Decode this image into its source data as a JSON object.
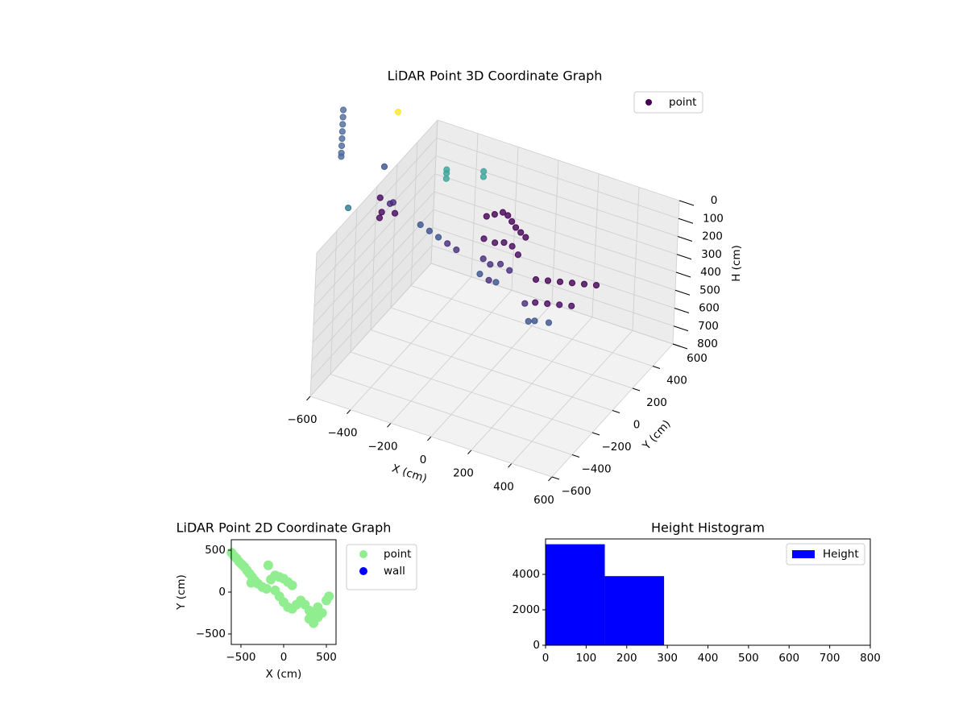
{
  "chart_data": [
    {
      "type": "scatter3d",
      "title": "LiDAR Point 3D Coordinate Graph",
      "xlabel": "X (cm)",
      "ylabel": "Y (cm)",
      "zlabel": "H (cm)",
      "xlim": [
        -600,
        600
      ],
      "ylim": [
        -600,
        600
      ],
      "hlim": [
        0,
        800
      ],
      "h_inverted": true,
      "xticks": [
        {
          "value": -600,
          "label": "−600"
        },
        {
          "value": -400,
          "label": "−400"
        },
        {
          "value": -200,
          "label": "−200"
        },
        0,
        200,
        400,
        600
      ],
      "yticks": [
        {
          "value": -600,
          "label": "−600"
        },
        {
          "value": -400,
          "label": "−400"
        },
        {
          "value": -200,
          "label": "−200"
        },
        0,
        200,
        400,
        600
      ],
      "hticks": [
        0,
        100,
        200,
        300,
        400,
        500,
        600,
        700,
        800
      ],
      "grid": true,
      "legend": "upper right",
      "series": [
        {
          "name": "point",
          "color": "#440154",
          "x": [
            -180,
            -150,
            -120,
            -90,
            -60,
            -30,
            0,
            30,
            -160,
            -110,
            -70,
            -20,
            20,
            -140,
            -100,
            -50,
            0,
            -130,
            -80,
            -40,
            150,
            200,
            250,
            300,
            350,
            400,
            180,
            230,
            280,
            330,
            200,
            260,
            120,
            160,
            -450,
            -400,
            -350,
            -300,
            -250,
            -620,
            -600,
            -580,
            -600,
            -560,
            -540,
            -740,
            -740,
            -740,
            -740,
            -740,
            -740,
            -740,
            -740,
            -636,
            -582,
            -542,
            -293,
            -293,
            -293,
            -152,
            -152
          ],
          "y": [
            260,
            280,
            300,
            290,
            270,
            250,
            240,
            230,
            200,
            210,
            220,
            200,
            180,
            160,
            150,
            150,
            140,
            110,
            100,
            90,
            100,
            120,
            140,
            160,
            180,
            200,
            40,
            60,
            80,
            100,
            0,
            20,
            60,
            20,
            150,
            140,
            130,
            120,
            110,
            80,
            60,
            100,
            40,
            90,
            70,
            -90,
            -90,
            -90,
            -90,
            -90,
            -90,
            -90,
            -90,
            -215,
            28,
            60,
            63,
            63,
            63,
            149,
            149
          ],
          "h": [
            170,
            160,
            150,
            150,
            160,
            170,
            180,
            190,
            250,
            260,
            250,
            240,
            260,
            330,
            340,
            320,
            330,
            380,
            390,
            380,
            300,
            300,
            300,
            300,
            300,
            300,
            380,
            380,
            380,
            380,
            450,
            450,
            420,
            480,
            250,
            260,
            270,
            280,
            290,
            120,
            180,
            150,
            200,
            130,
            170,
            -430,
            -390,
            -350,
            -310,
            -270,
            -230,
            -190,
            -170,
            0,
            -100,
            -400,
            -170,
            -150,
            -120,
            -160,
            -130
          ],
          "colors": [
            "#440154",
            "#440154",
            "#440154",
            "#440154",
            "#440154",
            "#440154",
            "#440154",
            "#440154",
            "#46085c",
            "#46085c",
            "#46085c",
            "#46085c",
            "#46085c",
            "#472c7a",
            "#472c7a",
            "#472c7a",
            "#472c7a",
            "#3b528b",
            "#472c7a",
            "#3b528b",
            "#440154",
            "#440154",
            "#440154",
            "#440154",
            "#440154",
            "#440154",
            "#46085c",
            "#46085c",
            "#46085c",
            "#46085c",
            "#3b528b",
            "#3b528b",
            "#472c7a",
            "#3b528b",
            "#3b528b",
            "#3b528b",
            "#3b528b",
            "#472c7a",
            "#472c7a",
            "#46085c",
            "#46085c",
            "#472c7a",
            "#46085c",
            "#472c7a",
            "#46085c",
            "#4e6a9a",
            "#4e6a9a",
            "#4e6a9a",
            "#4e6a9a",
            "#4e6a9a",
            "#4e6a9a",
            "#4e6a9a",
            "#4e6a9a",
            "#2a788e",
            "#3b528b",
            "#fde725",
            "#3aa59a",
            "#3aa59a",
            "#3aa59a",
            "#3aa59a",
            "#3aa59a"
          ]
        }
      ]
    },
    {
      "type": "scatter",
      "title": "LiDAR Point 2D Coordinate Graph",
      "xlabel": "X (cm)",
      "ylabel": "Y (cm)",
      "xlim": [
        -613,
        613
      ],
      "ylim": [
        -625,
        625
      ],
      "xticks": [
        {
          "value": -500,
          "label": "−500"
        },
        0,
        500
      ],
      "yticks": [
        {
          "value": -500,
          "label": "−500"
        },
        0,
        500
      ],
      "legend": "outside",
      "series": [
        {
          "name": "point",
          "color": "#90ee90",
          "x": [
            -610,
            -580,
            -550,
            -520,
            -490,
            -460,
            -430,
            -400,
            -370,
            -340,
            -300,
            -250,
            -200,
            -150,
            -100,
            -50,
            0,
            50,
            100,
            -100,
            -50,
            0,
            50,
            100,
            150,
            200,
            250,
            300,
            350,
            400,
            450,
            500,
            530,
            300,
            350,
            400,
            -180,
            -380
          ],
          "y": [
            470,
            430,
            400,
            360,
            330,
            300,
            260,
            220,
            180,
            140,
            100,
            60,
            40,
            150,
            200,
            180,
            160,
            120,
            80,
            20,
            -50,
            -120,
            -180,
            -200,
            -150,
            -100,
            -150,
            -220,
            -280,
            -300,
            -250,
            -100,
            -50,
            -320,
            -370,
            -180,
            320,
            110
          ]
        },
        {
          "name": "wall",
          "color": "#0000ff",
          "x": [],
          "y": []
        }
      ]
    },
    {
      "type": "histogram",
      "title": "Height Histogram",
      "name": "Height",
      "color": "#0000ff",
      "bins": [
        0,
        146,
        292
      ],
      "counts": [
        5700,
        3900
      ],
      "xlim": [
        0,
        800
      ],
      "ylim": [
        0,
        6000
      ],
      "xticks": [
        0,
        100,
        200,
        300,
        400,
        500,
        600,
        700,
        800
      ],
      "yticks": [
        0,
        2000,
        4000
      ],
      "legend": "upper right"
    }
  ]
}
